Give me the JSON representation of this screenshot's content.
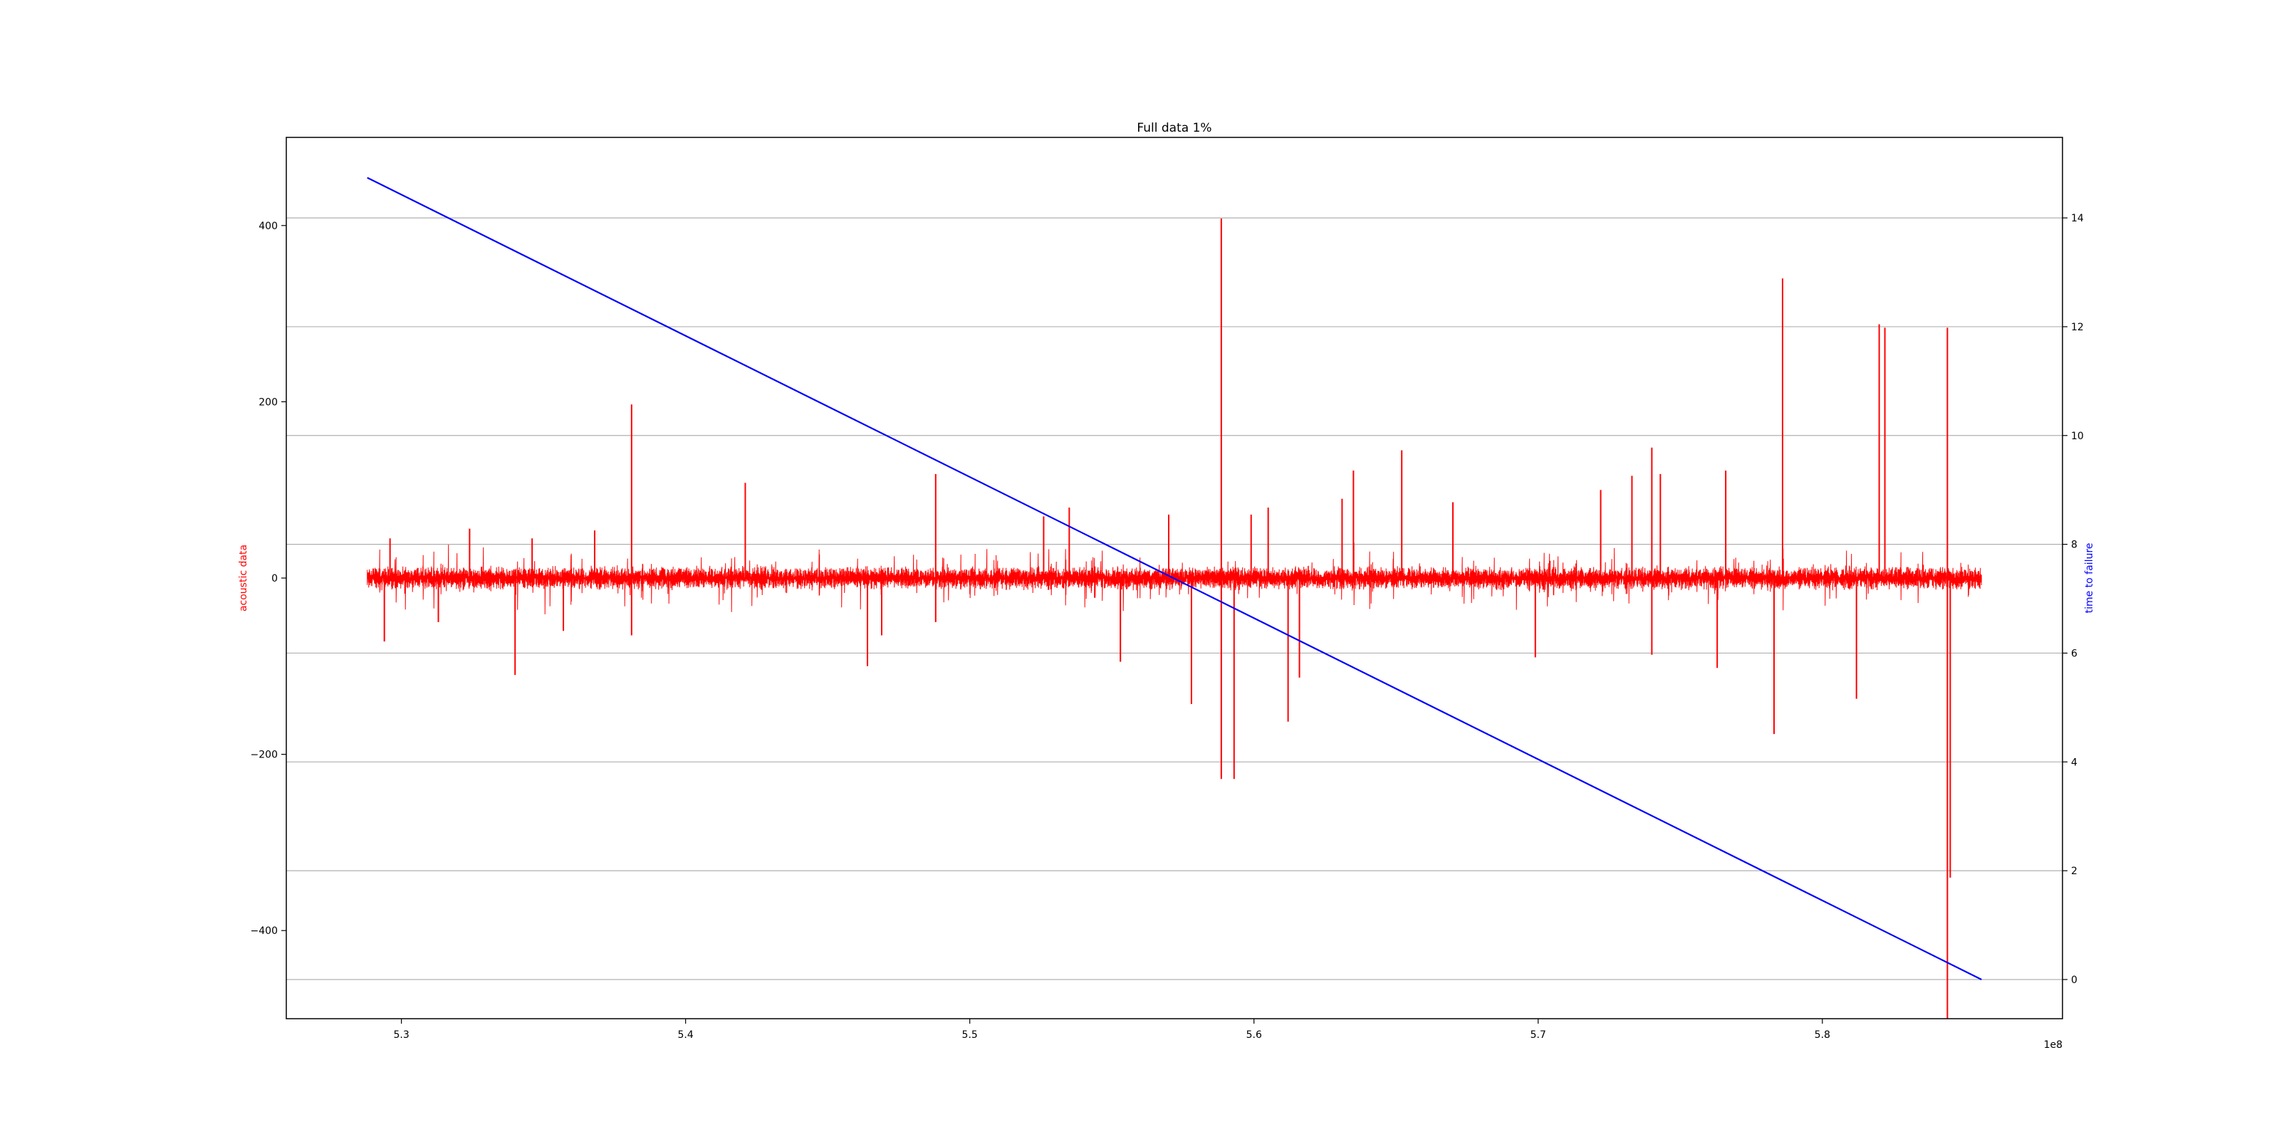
{
  "chart_data": {
    "type": "line",
    "title": "Full data 1%",
    "x": {
      "ticks": [
        "5.3",
        "5.4",
        "5.5",
        "5.6",
        "5.7",
        "5.8"
      ],
      "tick_values": [
        5.3,
        5.4,
        5.5,
        5.6,
        5.7,
        5.8
      ],
      "offset_label": "1e8",
      "range": [
        5.2595,
        5.8845
      ]
    },
    "y_left": {
      "label": "acoustic data",
      "color": "#ff0000",
      "ticks": [
        "−400",
        "−200",
        "0",
        "200",
        "400"
      ],
      "tick_values": [
        -400,
        -200,
        0,
        200,
        400
      ],
      "range": [
        -500,
        500
      ]
    },
    "y_right": {
      "label": "time to failure",
      "color": "#0000ff",
      "ticks": [
        "0",
        "2",
        "4",
        "6",
        "8",
        "10",
        "12",
        "14"
      ],
      "tick_values": [
        0,
        2,
        4,
        6,
        8,
        10,
        12,
        14
      ],
      "range": [
        -0.72,
        15.48
      ],
      "grid": true
    },
    "series": [
      {
        "axis": "left",
        "color": "#ff0000",
        "x_range": [
          5.288,
          5.856
        ],
        "baseline_amplitude": 12,
        "spikes": [
          {
            "x": 5.294,
            "y": -72
          },
          {
            "x": 5.296,
            "y": 45
          },
          {
            "x": 5.313,
            "y": -50
          },
          {
            "x": 5.324,
            "y": 56
          },
          {
            "x": 5.34,
            "y": -110
          },
          {
            "x": 5.346,
            "y": 45
          },
          {
            "x": 5.357,
            "y": -60
          },
          {
            "x": 5.368,
            "y": 54
          },
          {
            "x": 5.381,
            "y": 197
          },
          {
            "x": 5.381,
            "y": -65
          },
          {
            "x": 5.421,
            "y": 108
          },
          {
            "x": 5.464,
            "y": -100
          },
          {
            "x": 5.469,
            "y": -65
          },
          {
            "x": 5.488,
            "y": 118
          },
          {
            "x": 5.488,
            "y": -50
          },
          {
            "x": 5.526,
            "y": 70
          },
          {
            "x": 5.535,
            "y": 80
          },
          {
            "x": 5.553,
            "y": -95
          },
          {
            "x": 5.57,
            "y": 72
          },
          {
            "x": 5.578,
            "y": -143
          },
          {
            "x": 5.5885,
            "y": 408
          },
          {
            "x": 5.5885,
            "y": -228
          },
          {
            "x": 5.593,
            "y": -228
          },
          {
            "x": 5.599,
            "y": 72
          },
          {
            "x": 5.605,
            "y": 80
          },
          {
            "x": 5.612,
            "y": -163
          },
          {
            "x": 5.616,
            "y": -113
          },
          {
            "x": 5.631,
            "y": 90
          },
          {
            "x": 5.635,
            "y": 122
          },
          {
            "x": 5.652,
            "y": 145
          },
          {
            "x": 5.67,
            "y": 86
          },
          {
            "x": 5.699,
            "y": -90
          },
          {
            "x": 5.722,
            "y": 100
          },
          {
            "x": 5.733,
            "y": 116
          },
          {
            "x": 5.74,
            "y": 148
          },
          {
            "x": 5.74,
            "y": -87
          },
          {
            "x": 5.743,
            "y": 118
          },
          {
            "x": 5.763,
            "y": -102
          },
          {
            "x": 5.766,
            "y": 122
          },
          {
            "x": 5.783,
            "y": -177
          },
          {
            "x": 5.786,
            "y": 340
          },
          {
            "x": 5.812,
            "y": -137
          },
          {
            "x": 5.82,
            "y": 288
          },
          {
            "x": 5.822,
            "y": 284
          },
          {
            "x": 5.844,
            "y": 284
          },
          {
            "x": 5.844,
            "y": -500
          },
          {
            "x": 5.845,
            "y": -340
          }
        ]
      },
      {
        "axis": "right",
        "color": "#0000ff",
        "points": [
          [
            5.288,
            14.74
          ],
          [
            5.856,
            0.0
          ]
        ]
      }
    ]
  }
}
